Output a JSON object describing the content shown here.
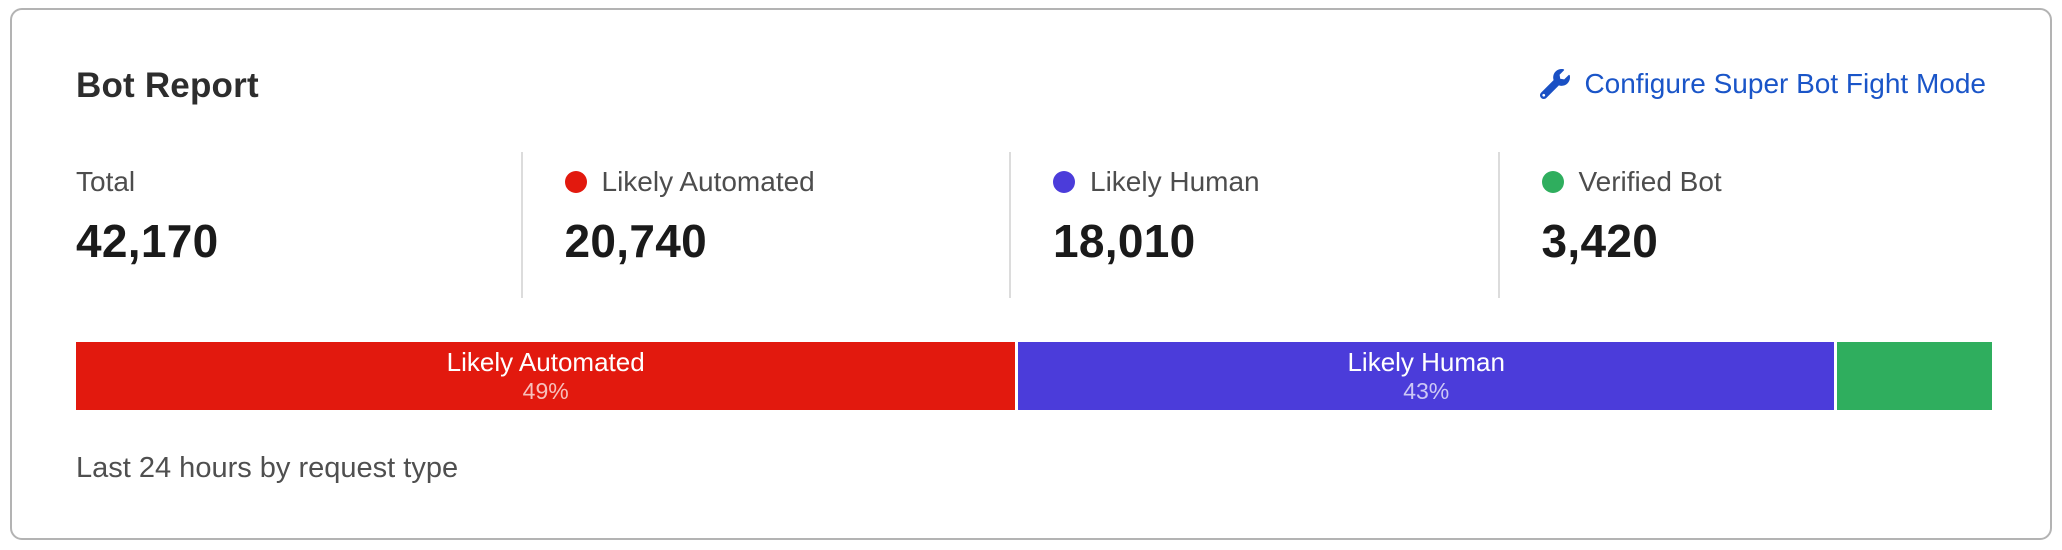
{
  "card": {
    "title": "Bot Report",
    "action_label": "Configure Super Bot Fight Mode",
    "link_color": "#1a55c8",
    "stats": [
      {
        "label": "Total",
        "value": "42,170",
        "dot_color": null
      },
      {
        "label": "Likely Automated",
        "value": "20,740",
        "dot_color": "#e2190e"
      },
      {
        "label": "Likely Human",
        "value": "18,010",
        "dot_color": "#4b3cda"
      },
      {
        "label": "Verified Bot",
        "value": "3,420",
        "dot_color": "#2fae5e"
      }
    ],
    "footnote": "Last 24 hours by request type"
  },
  "chart_data": {
    "type": "bar",
    "subtype": "horizontal-stacked",
    "title": "Bot Report",
    "categories": [
      "Likely Automated",
      "Likely Human",
      "Verified Bot"
    ],
    "values": [
      20740,
      18010,
      3420
    ],
    "total": 42170,
    "colors": [
      "#e2190e",
      "#4b3cda",
      "#2fae5e"
    ],
    "segment_labels": [
      "Likely Automated",
      "Likely Human",
      ""
    ],
    "segment_pct_labels": [
      "49%",
      "43%",
      ""
    ],
    "legend_position": "top",
    "footnote": "Last 24 hours by request type"
  }
}
